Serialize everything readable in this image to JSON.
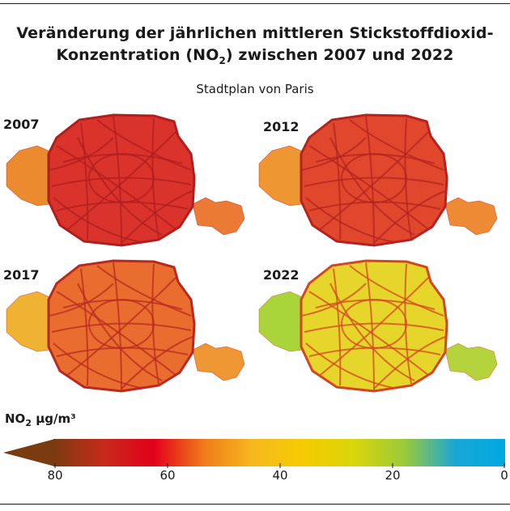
{
  "title_line1": "Veränderung der jährlichen mittleren Stickstoffdioxid-",
  "title_line2_pre": "Konzentration (NO",
  "title_line2_sub": "2",
  "title_line2_post": ") zwischen 2007 und 2022",
  "subtitle": "Stadtplan von Paris",
  "panels": [
    {
      "year": "2007",
      "fill": "#d9332b",
      "east_fill": "#ea7a34",
      "west_fill": "#ec8a30",
      "roads": "#b01e1e"
    },
    {
      "year": "2012",
      "fill": "#e0472c",
      "east_fill": "#ee8a33",
      "west_fill": "#ee9632",
      "roads": "#b4231f"
    },
    {
      "year": "2017",
      "fill": "#e86d2e",
      "east_fill": "#ef9635",
      "west_fill": "#f0b233",
      "roads": "#b9291f"
    },
    {
      "year": "2022",
      "fill": "#e6d52a",
      "east_fill": "#b4d33c",
      "west_fill": "#aad53a",
      "roads": "#d44522"
    }
  ],
  "legend": {
    "unit_pre": "NO",
    "unit_sub": "2",
    "unit_post": " µg/m³",
    "ticks": [
      "80",
      "60",
      "40",
      "20",
      "0"
    ],
    "stops": [
      "#7a3b10",
      "#c62a1a",
      "#e3001b",
      "#ef7c1a",
      "#f7b91f",
      "#f4cc00",
      "#d9d60a",
      "#99c93a",
      "#1aa6d6",
      "#00a9e2"
    ]
  }
}
